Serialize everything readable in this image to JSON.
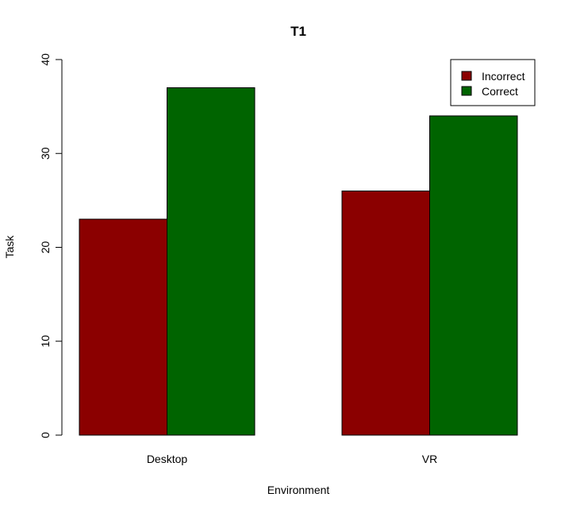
{
  "chart_data": {
    "type": "bar",
    "title": "T1",
    "xlabel": "Environment",
    "ylabel": "Task",
    "categories": [
      "Desktop",
      "VR"
    ],
    "series": [
      {
        "name": "Incorrect",
        "values": [
          23,
          26
        ],
        "color": "#8B0000"
      },
      {
        "name": "Correct",
        "values": [
          37,
          34
        ],
        "color": "#006400"
      }
    ],
    "ylim": [
      0,
      40
    ],
    "yticks": [
      "0",
      "10",
      "20",
      "30",
      "40"
    ],
    "grid": false,
    "legend_position": "top-right"
  }
}
